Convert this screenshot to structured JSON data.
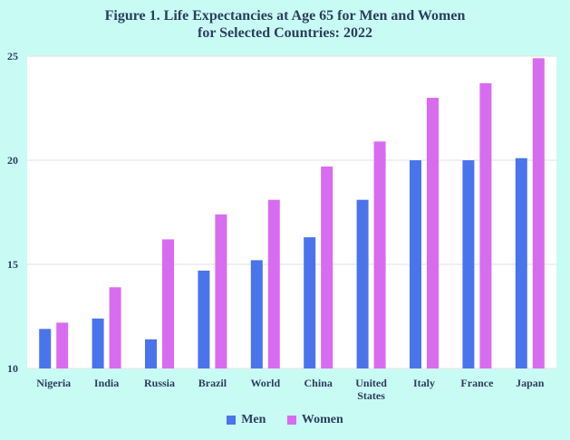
{
  "chart_data": {
    "type": "bar",
    "title": "Figure 1. Life Expectancies at Age 65 for Men and Women",
    "subtitle": "for Selected Countries: 2022",
    "categories": [
      "Nigeria",
      "India",
      "Russia",
      "Brazil",
      "World",
      "China",
      [
        "United",
        "States"
      ],
      "Italy",
      "France",
      "Japan"
    ],
    "series": [
      {
        "name": "Men",
        "color": "#4a74ec",
        "values": [
          11.9,
          12.4,
          11.4,
          14.7,
          15.2,
          16.3,
          18.1,
          20.0,
          20.0,
          20.1
        ]
      },
      {
        "name": "Women",
        "color": "#d86cf0",
        "values": [
          12.2,
          13.9,
          16.2,
          17.4,
          18.1,
          19.7,
          20.9,
          23.0,
          23.7,
          24.9
        ]
      }
    ],
    "yticks": [
      "10",
      "15",
      "20",
      "25"
    ],
    "ylim": [
      10,
      25
    ],
    "grid": true,
    "legend": "bottom"
  }
}
